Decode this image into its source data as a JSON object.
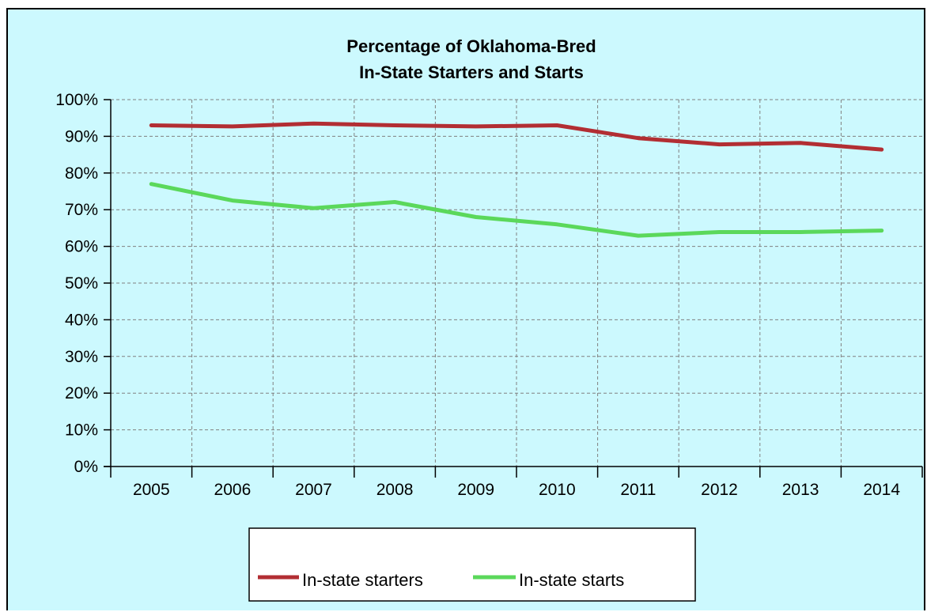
{
  "colors": {
    "background": "#ccf9fe",
    "starters": "#b22e33",
    "starts": "#5bd85b",
    "grid": "#808080"
  },
  "chart_data": {
    "type": "line",
    "title": [
      "Percentage of Oklahoma-Bred",
      "In-State Starters and Starts"
    ],
    "categories": [
      "2005",
      "2006",
      "2007",
      "2008",
      "2009",
      "2010",
      "2011",
      "2012",
      "2013",
      "2014"
    ],
    "series": [
      {
        "name": "In-state starters",
        "values": [
          93,
          92.7,
          93.5,
          93,
          92.7,
          93,
          89.5,
          87.8,
          88.2,
          86.4
        ]
      },
      {
        "name": "In-state starts",
        "values": [
          77,
          72.5,
          70.4,
          72.1,
          68,
          66,
          62.9,
          63.9,
          63.9,
          64.3
        ]
      }
    ],
    "yticks": [
      "0%",
      "10%",
      "20%",
      "30%",
      "40%",
      "50%",
      "60%",
      "70%",
      "80%",
      "90%",
      "100%"
    ],
    "ylim": [
      0,
      100
    ],
    "grid": true,
    "legend": "bottom"
  }
}
